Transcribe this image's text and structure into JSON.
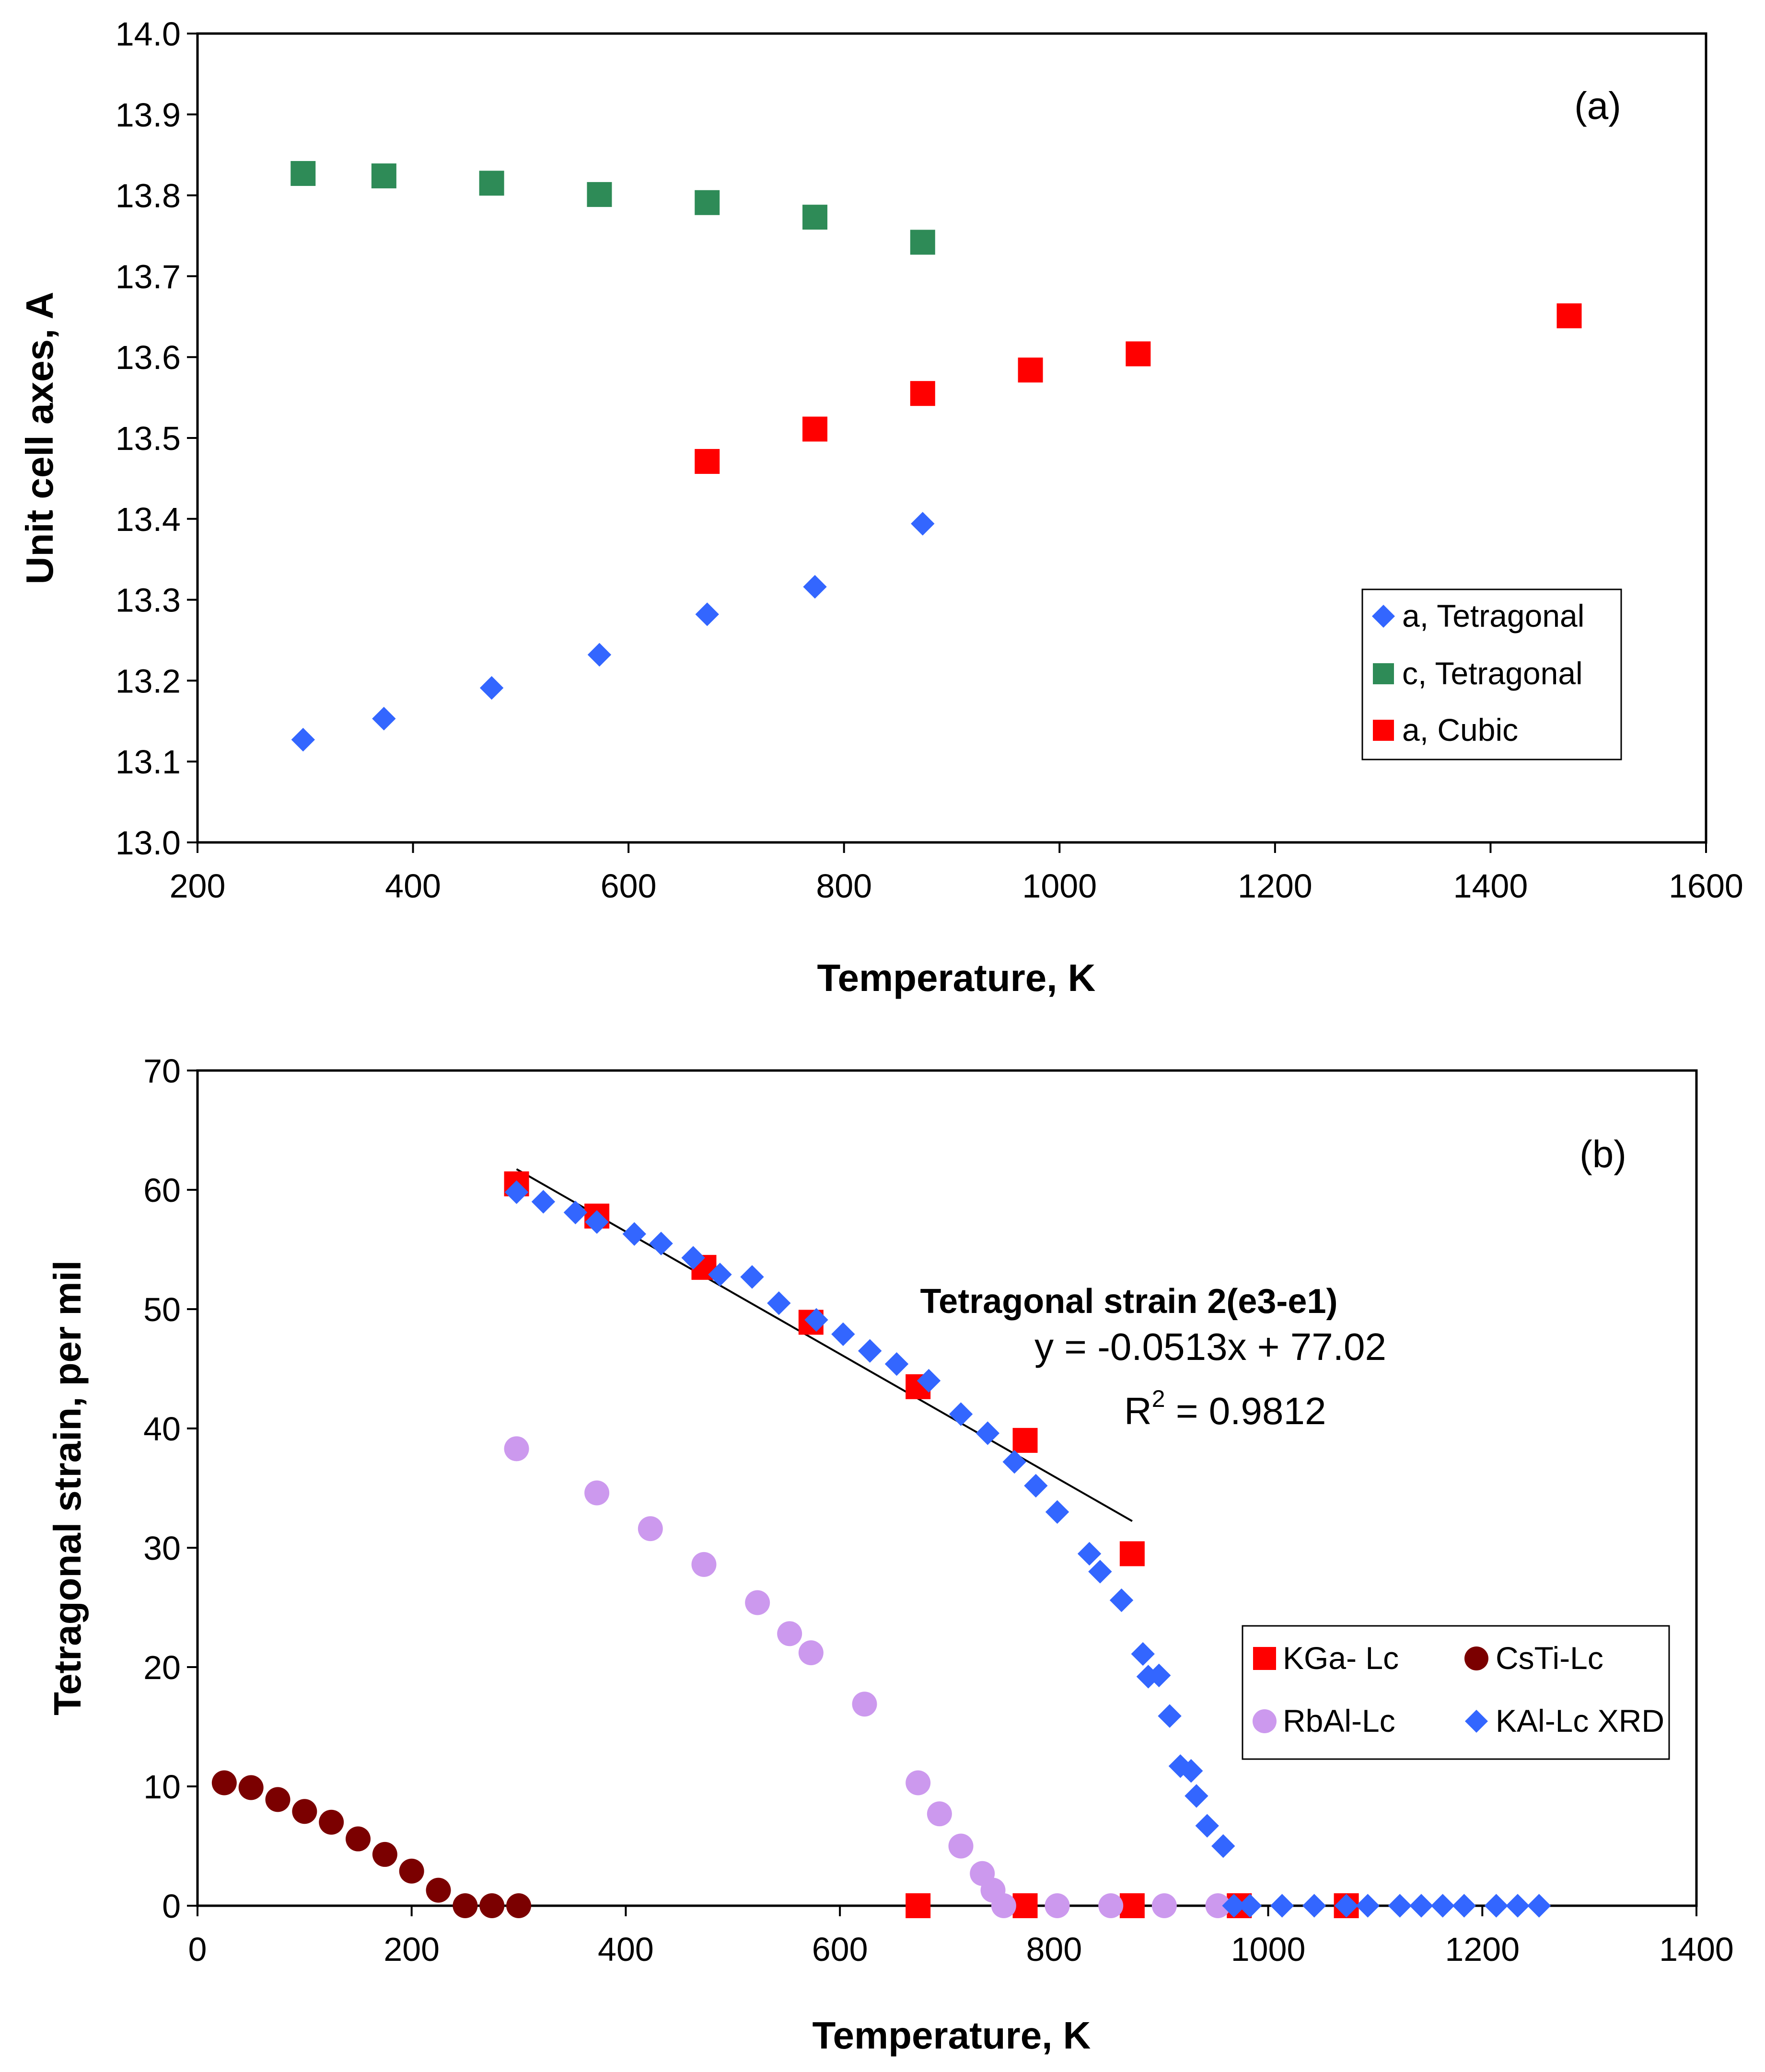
{
  "chart_data": [
    {
      "id": "a",
      "type": "scatter",
      "panel_label": "(a)",
      "xlabel": "Temperature, K",
      "ylabel": "Unit cell axes, A",
      "xlim": [
        200,
        1600
      ],
      "ylim": [
        13.0,
        14.0
      ],
      "xticks": [
        "200",
        "400",
        "600",
        "800",
        "1000",
        "1200",
        "1400",
        "1600"
      ],
      "yticks": [
        "13.0",
        "13.1",
        "13.2",
        "13.3",
        "13.4",
        "13.5",
        "13.6",
        "13.7",
        "13.8",
        "13.9",
        "14.0"
      ],
      "legend_position": "lower-right",
      "series": [
        {
          "name": "a, Tetragonal",
          "marker": "diamond",
          "color": "#3366ff",
          "x": [
            298,
            373,
            473,
            573,
            673,
            773,
            873
          ],
          "y": [
            13.127,
            13.153,
            13.191,
            13.232,
            13.282,
            13.316,
            13.394
          ]
        },
        {
          "name": "c, Tetragonal",
          "marker": "square",
          "color": "#2e8b57",
          "x": [
            298,
            373,
            473,
            573,
            673,
            773,
            873
          ],
          "y": [
            13.827,
            13.824,
            13.815,
            13.801,
            13.791,
            13.773,
            13.742
          ]
        },
        {
          "name": "a, Cubic",
          "marker": "square",
          "color": "#ff0000",
          "x": [
            673,
            773,
            873,
            973,
            1073,
            1473
          ],
          "y": [
            13.471,
            13.511,
            13.555,
            13.584,
            13.604,
            13.651
          ]
        }
      ]
    },
    {
      "id": "b",
      "type": "scatter",
      "panel_label": "(b)",
      "xlabel": "Temperature, K",
      "ylabel": "Tetragonal strain, per mil",
      "xlim": [
        0,
        1400
      ],
      "ylim": [
        0,
        70
      ],
      "xticks": [
        "0",
        "200",
        "400",
        "600",
        "800",
        "1000",
        "1200",
        "1400"
      ],
      "yticks": [
        "0",
        "10",
        "20",
        "30",
        "40",
        "50",
        "60",
        "70"
      ],
      "legend_position": "lower-right",
      "annotation": {
        "title": "Tetragonal strain 2(e3-e1)",
        "equation": "y = -0.0513x + 77.02",
        "r2_prefix": "R",
        "r2_sup": "2",
        "r2_suffix": " = 0.9812"
      },
      "trendline": {
        "x": [
          298,
          873
        ],
        "slope": -0.0513,
        "intercept": 77.02
      },
      "series": [
        {
          "name": "KGa- Lc",
          "marker": "square",
          "color": "#ff0000",
          "x": [
            298,
            373,
            473,
            573,
            673,
            773,
            873,
            673,
            773,
            873,
            973,
            1073
          ],
          "y": [
            60.5,
            57.8,
            53.5,
            48.9,
            43.5,
            39.0,
            29.5,
            0,
            0,
            0,
            0,
            0
          ]
        },
        {
          "name": "CsTi-Lc",
          "marker": "circle",
          "color": "#7b0000",
          "x": [
            25,
            50,
            75,
            100,
            125,
            150,
            175,
            200,
            225,
            250,
            275,
            300
          ],
          "y": [
            10.3,
            9.9,
            8.9,
            7.9,
            7.0,
            5.6,
            4.3,
            2.9,
            1.3,
            0,
            0,
            0
          ]
        },
        {
          "name": "RbAl-Lc",
          "marker": "circle",
          "color": "#cc99ee",
          "x": [
            298,
            373,
            423,
            473,
            523,
            553,
            573,
            623,
            673,
            693,
            713,
            733,
            743,
            753,
            803,
            853,
            903,
            953
          ],
          "y": [
            38.3,
            34.6,
            31.6,
            28.6,
            25.4,
            22.8,
            21.2,
            16.9,
            10.3,
            7.7,
            5.0,
            2.7,
            1.3,
            0,
            0,
            0,
            0,
            0
          ]
        },
        {
          "name": "KAl-Lc XRD",
          "marker": "diamond",
          "color": "#3366ff",
          "x": [
            298,
            323,
            353,
            373,
            408,
            433,
            463,
            488,
            518,
            543,
            578,
            603,
            628,
            653,
            683,
            713,
            738,
            763,
            783,
            803,
            833,
            843,
            863,
            883,
            888,
            898,
            908,
            918,
            928,
            933,
            943,
            958,
            968,
            983,
            1013,
            1043,
            1073,
            1093,
            1123,
            1143,
            1163,
            1183,
            1213,
            1233,
            1253
          ],
          "y": [
            59.8,
            59.0,
            58.1,
            57.3,
            56.3,
            55.5,
            54.3,
            52.9,
            52.7,
            50.5,
            49.1,
            47.9,
            46.5,
            45.4,
            44.0,
            41.2,
            39.6,
            37.2,
            35.2,
            33.0,
            29.5,
            28.0,
            25.6,
            21.1,
            19.2,
            19.3,
            15.9,
            11.7,
            11.3,
            9.2,
            6.7,
            5.0,
            0,
            0,
            0,
            0,
            0,
            0,
            0,
            0,
            0,
            0,
            0,
            0,
            0
          ]
        }
      ]
    }
  ]
}
